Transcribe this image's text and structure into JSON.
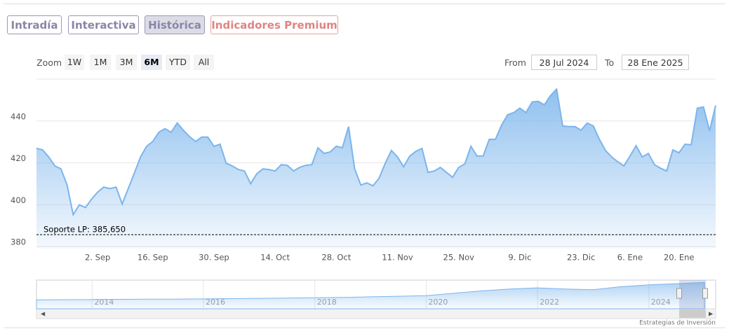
{
  "tabs": [
    "Intradía",
    "Interactiva",
    "Histórica",
    "Indicadores Premium"
  ],
  "zoom": {
    "label": "Zoom",
    "buttons": [
      "1W",
      "1M",
      "3M",
      "6M",
      "YTD",
      "All"
    ]
  },
  "range": {
    "from_label": "From",
    "from": "28 Jul 2024",
    "to_label": "To",
    "to": "28 Ene 2025"
  },
  "credit": "Estrategias de Inversión",
  "chart_data": {
    "type": "area",
    "color": "#7cb5ec",
    "grid": true,
    "categories": [
      null,
      null,
      null,
      null,
      null,
      null,
      null,
      null,
      null,
      null,
      "2. Sep",
      null,
      null,
      null,
      null,
      null,
      null,
      null,
      null,
      "16. Sep",
      null,
      null,
      null,
      null,
      null,
      null,
      null,
      null,
      null,
      "30. Sep",
      null,
      null,
      null,
      null,
      null,
      null,
      null,
      null,
      null,
      "14. Oct",
      null,
      null,
      null,
      null,
      null,
      null,
      null,
      null,
      null,
      "28. Oct",
      null,
      null,
      null,
      null,
      null,
      null,
      null,
      null,
      null,
      "11. Nov",
      null,
      null,
      null,
      null,
      null,
      null,
      null,
      null,
      null,
      "25. Nov",
      null,
      null,
      null,
      null,
      null,
      null,
      null,
      null,
      null,
      "9. Dic",
      null,
      null,
      null,
      null,
      null,
      null,
      null,
      null,
      null,
      "23. Dic",
      null,
      null,
      null,
      null,
      null,
      null,
      null,
      "6. Ene",
      null,
      null,
      null,
      null,
      null,
      null,
      null,
      "20. Ene",
      null,
      null,
      null,
      null,
      null,
      null
    ],
    "values": [
      426.9,
      426.2,
      422.8,
      418.5,
      417.1,
      409.4,
      395.2,
      399.9,
      398.6,
      402.6,
      406.0,
      408.4,
      407.7,
      408.4,
      400.3,
      407.7,
      415.1,
      422.8,
      427.9,
      430.2,
      434.6,
      436.3,
      434.6,
      439.0,
      435.6,
      432.6,
      430.2,
      432.3,
      432.3,
      427.9,
      428.9,
      419.8,
      418.5,
      416.8,
      416.1,
      410.0,
      414.7,
      417.1,
      416.8,
      416.1,
      419.1,
      418.8,
      416.1,
      417.8,
      418.8,
      419.1,
      427.2,
      424.5,
      425.2,
      427.9,
      427.2,
      437.3,
      417.1,
      409.4,
      410.4,
      409.0,
      412.7,
      419.8,
      425.9,
      422.8,
      418.1,
      423.2,
      425.5,
      426.9,
      415.4,
      416.1,
      417.8,
      415.4,
      413.1,
      417.8,
      419.5,
      427.9,
      423.2,
      423.2,
      431.2,
      431.2,
      438.0,
      443.0,
      444.0,
      446.1,
      444.0,
      449.1,
      449.4,
      447.7,
      452.1,
      455.2,
      437.6,
      437.3,
      437.3,
      435.6,
      439.0,
      437.6,
      431.2,
      425.9,
      422.8,
      420.5,
      418.5,
      423.2,
      428.2,
      422.8,
      424.5,
      419.1,
      417.4,
      416.1,
      426.2,
      424.8,
      428.9,
      428.6,
      446.1,
      446.7,
      435.3,
      447.4
    ],
    "ylim": [
      379,
      460
    ],
    "yticks": [
      380,
      400,
      420,
      440
    ],
    "support": {
      "value": 385.65,
      "label": "Soporte LP: 385,650"
    },
    "navigator": {
      "x": [
        2013,
        2013.5,
        2014,
        2014.5,
        2015,
        2015.5,
        2016,
        2016.5,
        2017,
        2017.5,
        2018,
        2018.5,
        2019,
        2019.5,
        2020,
        2020.5,
        2021,
        2021.5,
        2022,
        2022.5,
        2023,
        2023.5,
        2024,
        2024.5,
        2025
      ],
      "values": [
        150,
        152,
        155,
        158,
        160,
        162,
        165,
        170,
        175,
        180,
        185,
        190,
        200,
        210,
        220,
        260,
        300,
        330,
        350,
        330,
        320,
        370,
        400,
        420,
        440
      ],
      "xlim": [
        2013,
        2025.2
      ],
      "ylim": [
        0,
        480
      ],
      "xticks": [
        2014,
        2016,
        2018,
        2020,
        2022,
        2024
      ]
    }
  }
}
